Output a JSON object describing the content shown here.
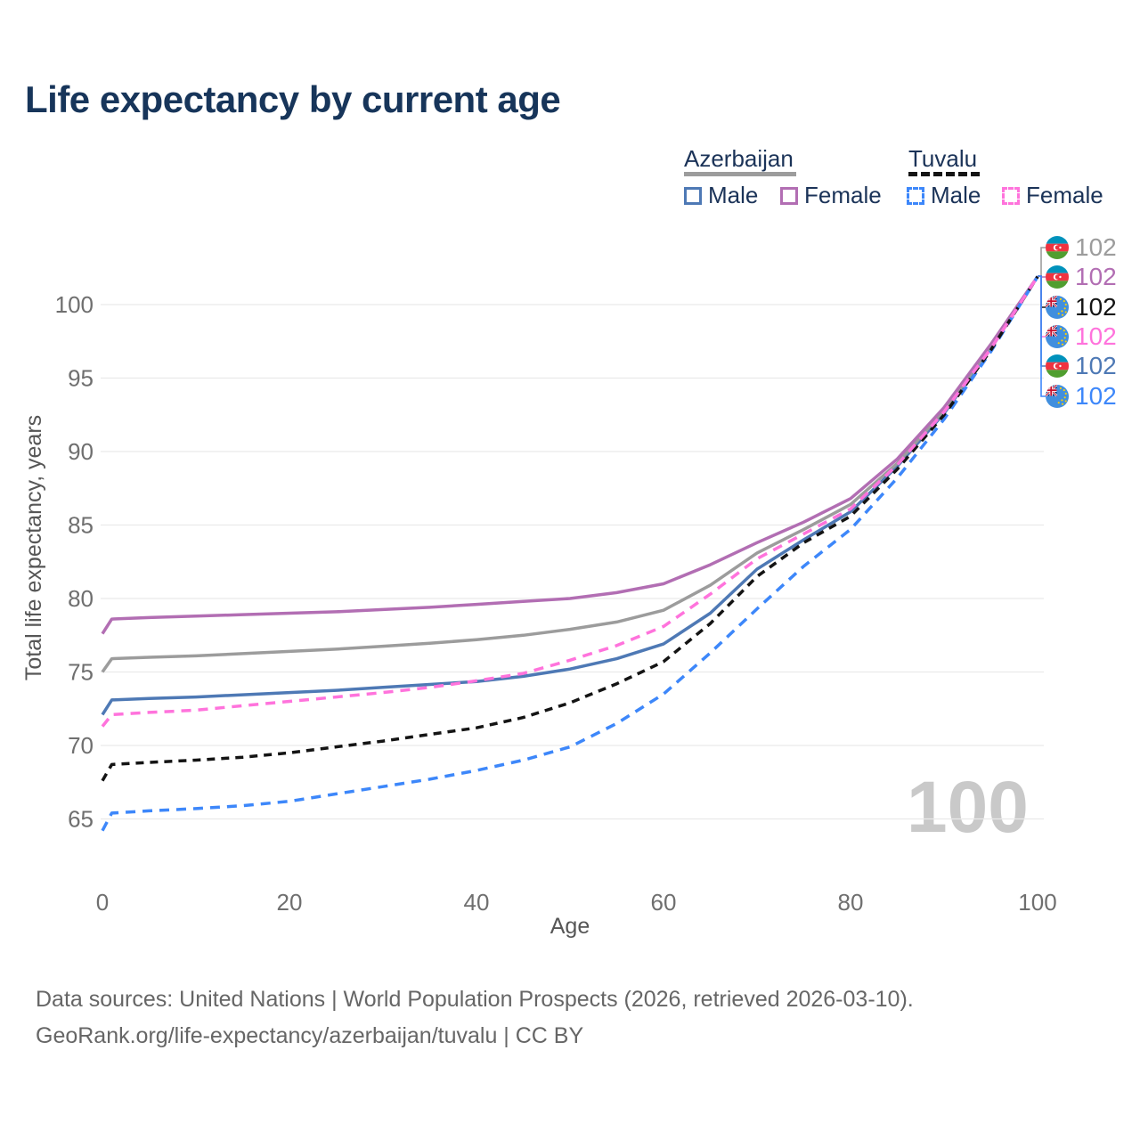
{
  "title": "Life expectancy by current age",
  "watermark": "100",
  "legend": {
    "groups": [
      {
        "label": "Azerbaijan",
        "style": "solid",
        "color": "#9c9c9c"
      },
      {
        "label": "Tuvalu",
        "style": "dashed",
        "color": "#141414"
      }
    ],
    "items": [
      {
        "label": "Male",
        "country": "Azerbaijan",
        "style": "solid",
        "color": "#4e79b5"
      },
      {
        "label": "Female",
        "country": "Azerbaijan",
        "style": "solid",
        "color": "#b26eb3"
      },
      {
        "label": "Male",
        "country": "Tuvalu",
        "style": "dashed",
        "color": "#3d87fa"
      },
      {
        "label": "Female",
        "country": "Tuvalu",
        "style": "dashed",
        "color": "#ff73dc"
      }
    ]
  },
  "chart_data": {
    "type": "line",
    "title": "Life expectancy by current age",
    "xlabel": "Age",
    "ylabel": "Total life expectancy, years",
    "xlim": [
      0,
      100
    ],
    "ylim": [
      63.5,
      103
    ],
    "xticks": [
      0,
      20,
      40,
      60,
      80,
      100
    ],
    "yticks": [
      65,
      70,
      75,
      80,
      85,
      90,
      95,
      100
    ],
    "grid": "horizontal-only",
    "x": [
      0,
      1,
      5,
      10,
      15,
      20,
      25,
      30,
      35,
      40,
      45,
      50,
      55,
      60,
      65,
      70,
      75,
      80,
      85,
      90,
      95,
      100
    ],
    "series": [
      {
        "name": "Azerbaijan Male",
        "color": "#4e79b5",
        "dash": false,
        "values": [
          72.1,
          73.1,
          73.2,
          73.3,
          73.45,
          73.6,
          73.75,
          73.95,
          74.15,
          74.35,
          74.7,
          75.2,
          75.9,
          76.9,
          79.0,
          82.0,
          84.0,
          85.9,
          89.0,
          92.6,
          97.0,
          101.9
        ]
      },
      {
        "name": "Azerbaijan Total",
        "color": "#9c9c9c",
        "dash": false,
        "values": [
          75.0,
          75.9,
          76.0,
          76.1,
          76.25,
          76.4,
          76.55,
          76.75,
          76.95,
          77.2,
          77.5,
          77.9,
          78.4,
          79.2,
          80.9,
          83.1,
          84.7,
          86.4,
          89.2,
          92.8,
          97.1,
          101.9
        ]
      },
      {
        "name": "Azerbaijan Female",
        "color": "#b26eb3",
        "dash": false,
        "values": [
          77.6,
          78.6,
          78.7,
          78.8,
          78.9,
          79.0,
          79.1,
          79.25,
          79.4,
          79.6,
          79.8,
          80.0,
          80.4,
          81.0,
          82.3,
          83.8,
          85.2,
          86.8,
          89.5,
          93.0,
          97.3,
          101.9
        ]
      },
      {
        "name": "Tuvalu Male",
        "color": "#3d87fa",
        "dash": true,
        "values": [
          64.2,
          65.4,
          65.55,
          65.7,
          65.9,
          66.2,
          66.7,
          67.2,
          67.7,
          68.3,
          69.0,
          69.9,
          71.5,
          73.5,
          76.3,
          79.3,
          82.2,
          84.7,
          88.2,
          92.2,
          96.8,
          101.9
        ]
      },
      {
        "name": "Tuvalu Total",
        "color": "#141414",
        "dash": true,
        "values": [
          67.6,
          68.7,
          68.85,
          69.0,
          69.2,
          69.5,
          69.9,
          70.3,
          70.75,
          71.2,
          71.9,
          72.9,
          74.2,
          75.7,
          78.3,
          81.5,
          83.8,
          85.6,
          88.8,
          92.5,
          96.9,
          101.9
        ]
      },
      {
        "name": "Tuvalu Female",
        "color": "#ff73dc",
        "dash": true,
        "values": [
          71.3,
          72.1,
          72.25,
          72.4,
          72.7,
          73.0,
          73.3,
          73.6,
          73.95,
          74.4,
          74.9,
          75.8,
          76.8,
          78.1,
          80.3,
          82.7,
          84.4,
          86.1,
          89.1,
          92.7,
          97.0,
          101.9
        ]
      }
    ]
  },
  "callouts": [
    {
      "country": "Azerbaijan",
      "flag": "az",
      "value": "102",
      "color": "#9c9c9c"
    },
    {
      "country": "Azerbaijan",
      "flag": "az",
      "value": "102",
      "color": "#b26eb3"
    },
    {
      "country": "Tuvalu",
      "flag": "tv",
      "value": "102",
      "color": "#141414"
    },
    {
      "country": "Tuvalu",
      "flag": "tv",
      "value": "102",
      "color": "#ff73dc"
    },
    {
      "country": "Azerbaijan",
      "flag": "az",
      "value": "102",
      "color": "#4e79b5"
    },
    {
      "country": "Tuvalu",
      "flag": "tv",
      "value": "102",
      "color": "#3d87fa"
    }
  ],
  "footer": {
    "line1": "Data sources: United Nations | World Population Prospects (2026, retrieved 2026-03-10).",
    "line2": "GeoRank.org/life-expectancy/azerbaijan/tuvalu | CC BY"
  },
  "colors": {
    "title_text": "#17355a",
    "legend_text": "#1b3358",
    "tick_text": "#6f6f6f",
    "axis_title_text": "#565656",
    "gridline": "#eaeaea",
    "watermark": "#c9c9c9",
    "footer_text": "#666666"
  }
}
